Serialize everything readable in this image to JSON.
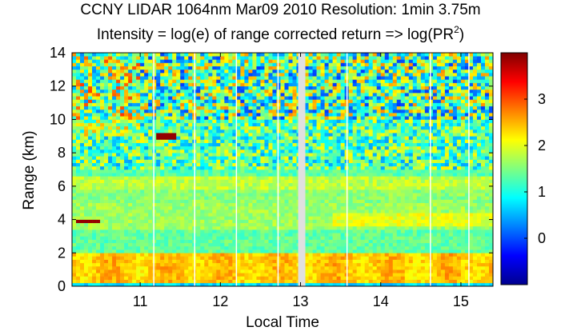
{
  "chart_data": {
    "type": "heatmap",
    "title": "CCNY LIDAR 1064nm Mar09 2010 Resolution: 1min 3.75m",
    "subtitle": {
      "prefix": "Intensity = log(e) of range corrected return => log(PR",
      "sup": "2",
      "suffix": ")"
    },
    "xlabel": "Local Time",
    "ylabel": "Range (km)",
    "xlim": [
      10.15,
      15.4
    ],
    "ylim": [
      0,
      14
    ],
    "xticks": [
      11,
      12,
      13,
      14,
      15
    ],
    "yticks": [
      0,
      2,
      4,
      6,
      8,
      10,
      12,
      14
    ],
    "colorbar": {
      "range": [
        -1,
        4
      ],
      "ticks": [
        0,
        1,
        2,
        3
      ],
      "colormap": "jet"
    },
    "data_gaps_hours": [
      11.17,
      11.68,
      12.2,
      12.72,
      12.98,
      13.58,
      14.62,
      15.1
    ],
    "large_gap_hours": [
      12.97,
      13.06
    ],
    "features": [
      {
        "kind": "boundary layer aerosol",
        "range_km": [
          0.2,
          2.1
        ],
        "intensity": 2.4
      },
      {
        "kind": "cloud",
        "time_h": [
          10.18,
          10.5
        ],
        "range_km": [
          3.8,
          4.1
        ],
        "intensity": 3.9
      },
      {
        "kind": "cloud",
        "time_h": [
          11.2,
          11.45
        ],
        "range_km": [
          8.8,
          9.1
        ],
        "intensity": 3.9
      },
      {
        "kind": "aerosol layer",
        "range_km": [
          3.5,
          5.0
        ],
        "intensity": 1.9
      },
      {
        "kind": "aerosol layer",
        "range_km": [
          5.8,
          6.6
        ],
        "intensity": 1.7
      }
    ]
  }
}
